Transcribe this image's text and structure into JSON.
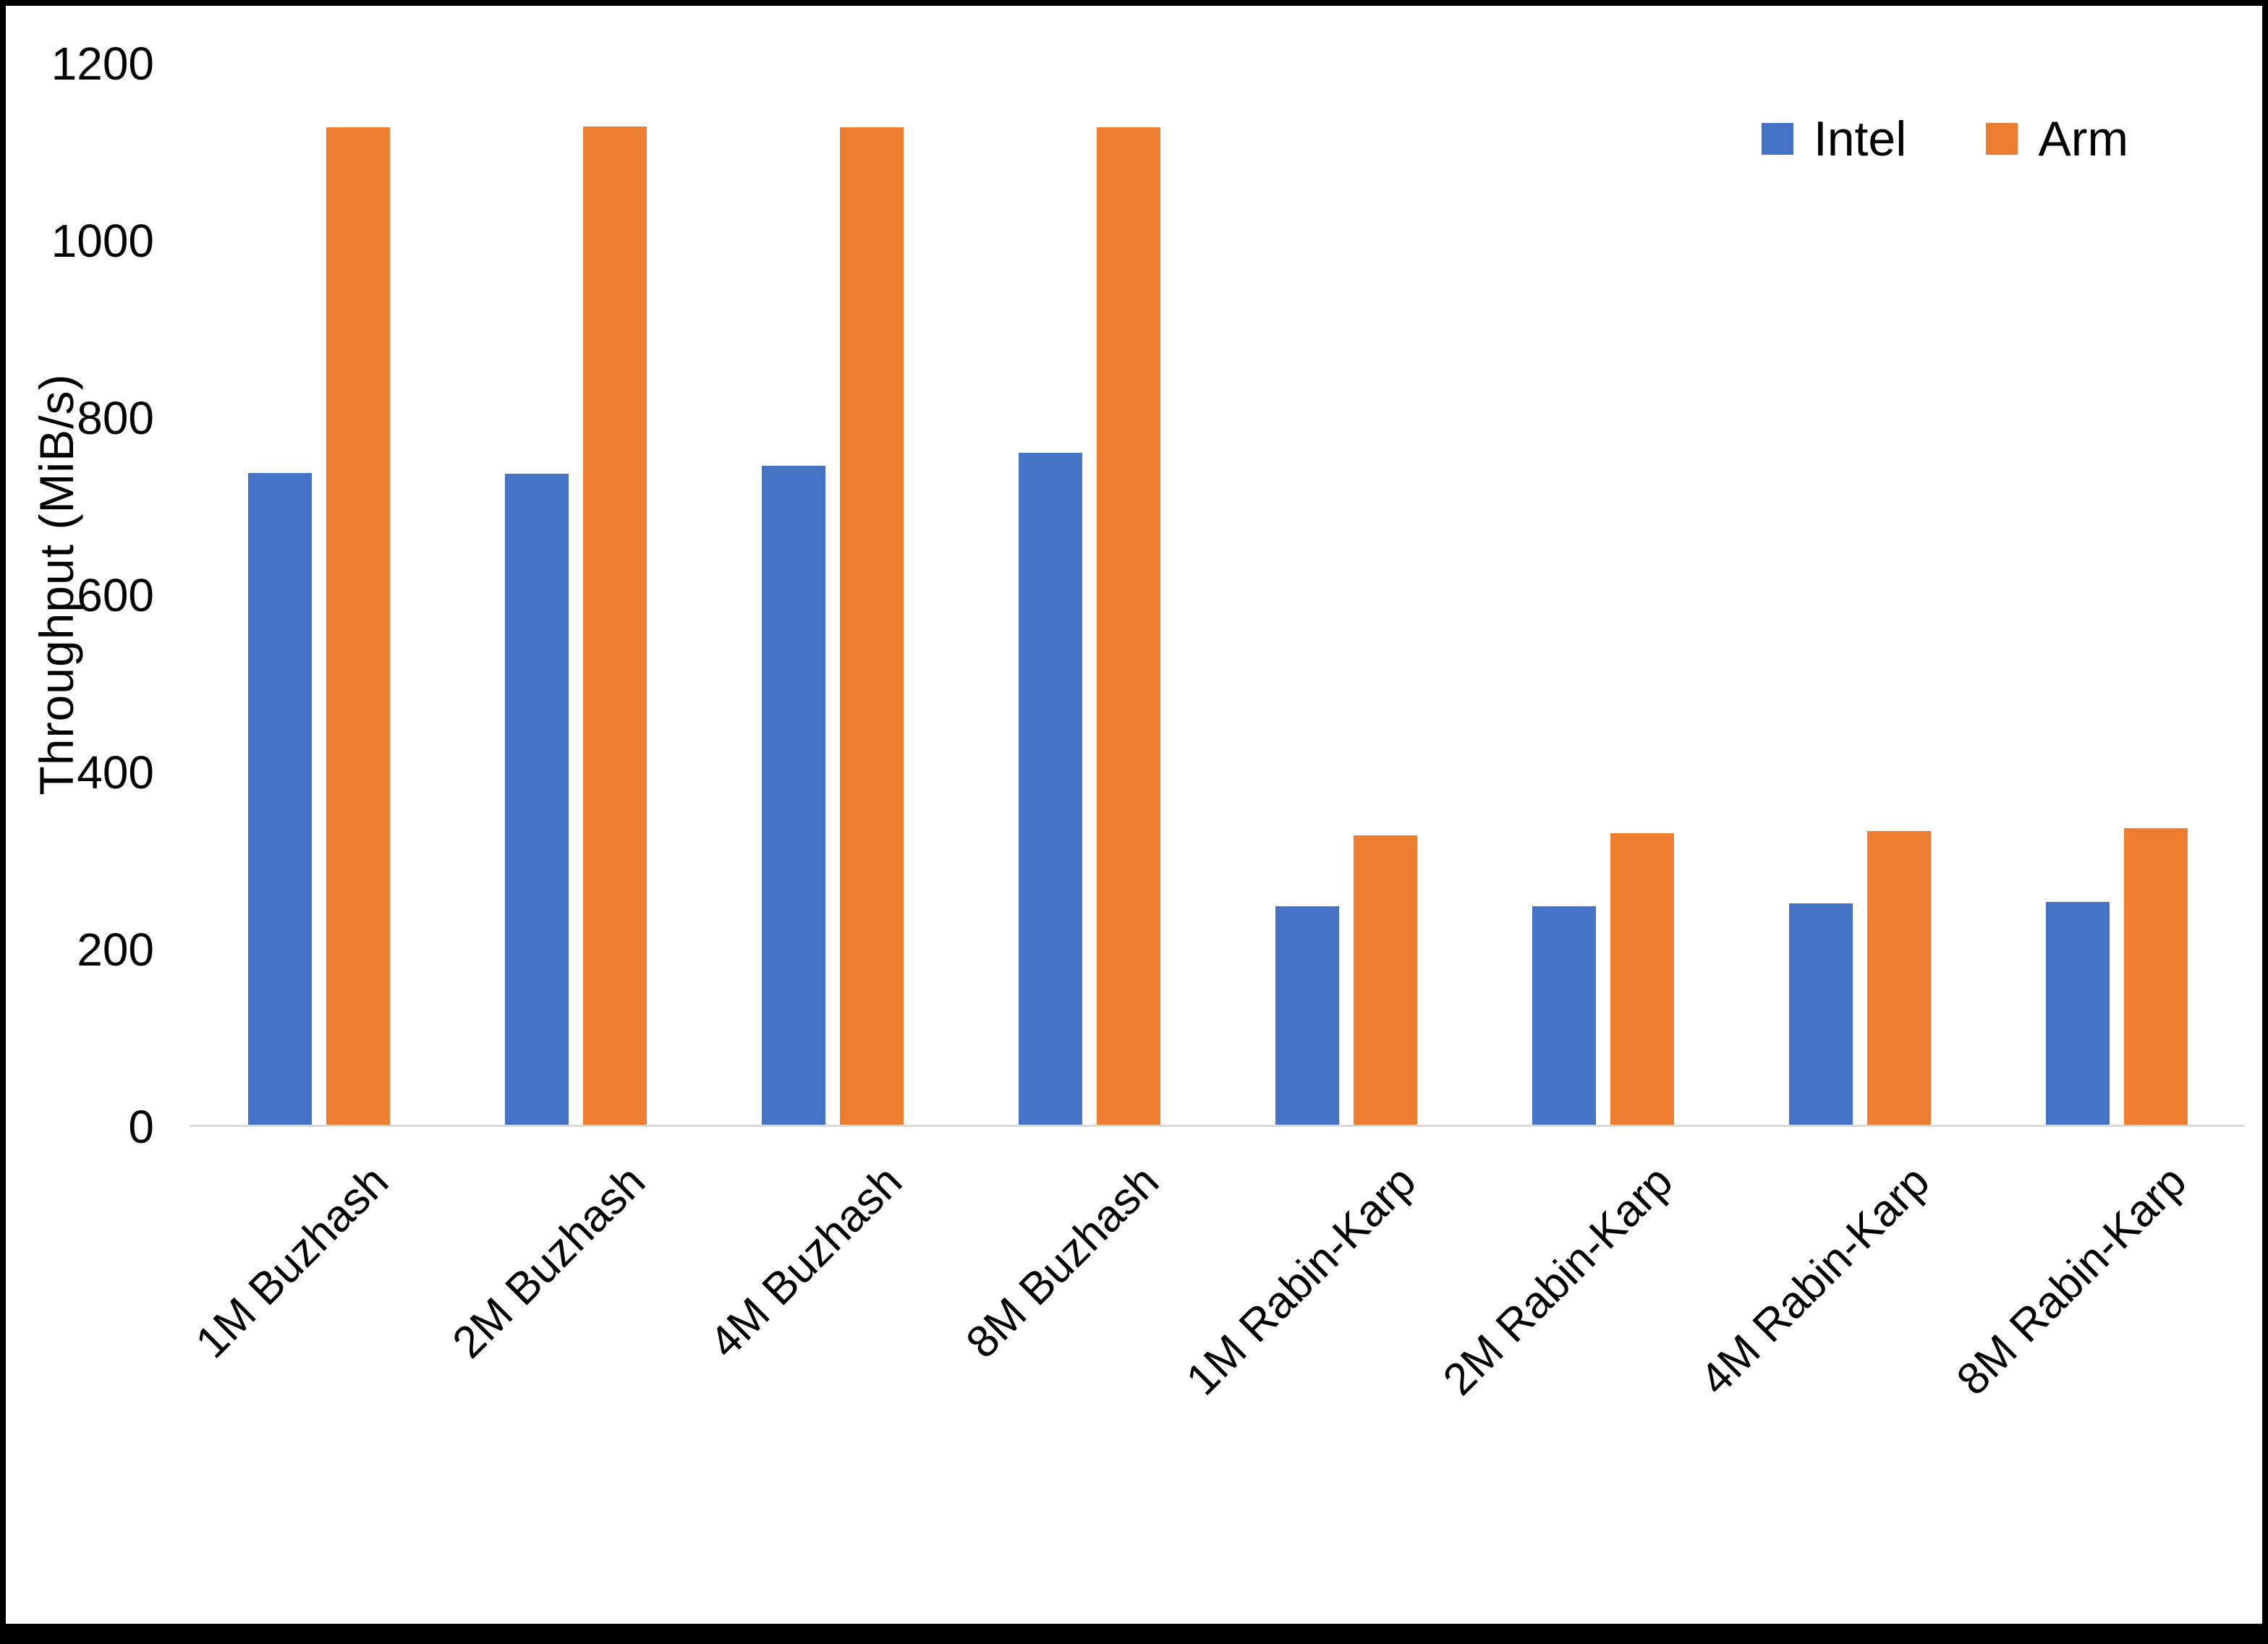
{
  "chart_data": {
    "type": "bar",
    "title": "",
    "xlabel": "",
    "ylabel": "Throughput (MiB/s)",
    "ylim": [
      0,
      1200
    ],
    "yticks": [
      0,
      200,
      400,
      600,
      800,
      1000,
      1200
    ],
    "grid": false,
    "legend_position": "top-right",
    "categories": [
      "1M Buzhash",
      "2M Buzhash",
      "4M Buzhash",
      "8M Buzhash",
      "1M Rabin-Karp",
      "2M Rabin-Karp",
      "4M Rabin-Karp",
      "8M Rabin-Karp"
    ],
    "series": [
      {
        "name": "Intel",
        "color": "#4472C4",
        "values": [
          737,
          736,
          745,
          760,
          247,
          247,
          250,
          252
        ]
      },
      {
        "name": "Arm",
        "color": "#ED7D31",
        "values": [
          1128,
          1129,
          1128,
          1128,
          327,
          330,
          332,
          335
        ]
      }
    ]
  }
}
